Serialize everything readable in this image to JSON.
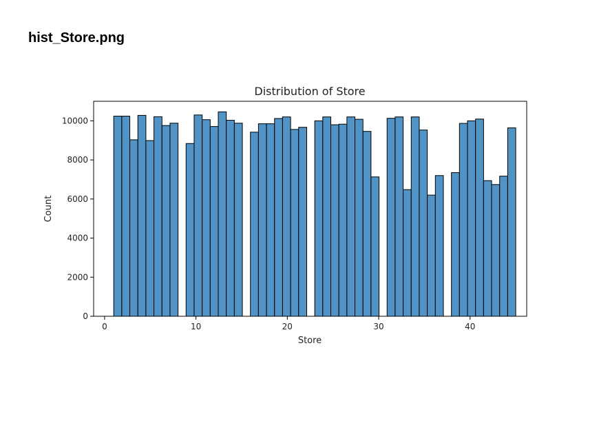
{
  "file_title": "hist_Store.png",
  "chart_data": {
    "type": "bar",
    "title": "Distribution of Store",
    "xlabel": "Store",
    "ylabel": "Count",
    "xlim": [
      -1.2,
      46.2
    ],
    "ylim": [
      0,
      11000
    ],
    "xticks": [
      0,
      10,
      20,
      30,
      40
    ],
    "yticks": [
      0,
      2000,
      4000,
      6000,
      8000,
      10000
    ],
    "bin_edges_start": 1,
    "bin_width": 0.88,
    "values": [
      10240,
      10240,
      9030,
      10280,
      8990,
      10210,
      9760,
      9880,
      0,
      8840,
      10300,
      10060,
      9710,
      10460,
      10030,
      9880,
      0,
      9420,
      9850,
      9850,
      10120,
      10200,
      9560,
      9670,
      0,
      10000,
      10200,
      9800,
      9830,
      10200,
      10080,
      9460,
      7130,
      0,
      10130,
      10200,
      6480,
      10200,
      9530,
      6200,
      7200,
      0,
      7350,
      9870,
      10000,
      10090,
      6940,
      6740,
      7170,
      9640
    ],
    "bar_color": "#5093c4",
    "edge_color": "#000000",
    "grid": false
  }
}
